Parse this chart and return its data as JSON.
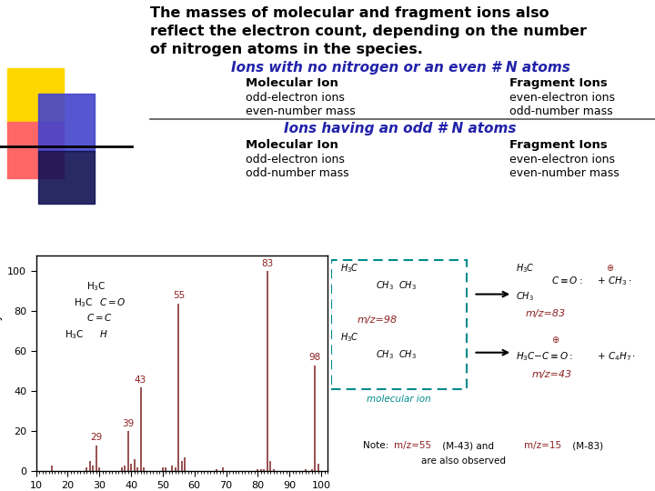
{
  "title_line1": "The masses of molecular and fragment ions also",
  "title_line2": "reflect the electron count, depending on the number",
  "title_line3": "of nitrogen atoms in the species.",
  "subtitle1": "Ions with no nitrogen or an even # N atoms",
  "subtitle2": "Ions having an odd # N atoms",
  "section1_mol_header": "Molecular Ion",
  "section1_mol_lines": [
    "odd-electron ions",
    "even-number mass"
  ],
  "section1_frag_header": "Fragment Ions",
  "section1_frag_lines": [
    "even-electron ions",
    "odd-number mass"
  ],
  "section2_mol_header": "Molecular Ion",
  "section2_mol_lines": [
    "odd-electron ions",
    "odd-number mass"
  ],
  "section2_frag_header": "Fragment Ions",
  "section2_frag_lines": [
    "even-electron ions",
    "even-number mass"
  ],
  "ms_peaks": [
    {
      "mz": 15,
      "intensity": 3
    },
    {
      "mz": 26,
      "intensity": 2
    },
    {
      "mz": 27,
      "intensity": 5
    },
    {
      "mz": 28,
      "intensity": 3
    },
    {
      "mz": 29,
      "intensity": 13
    },
    {
      "mz": 30,
      "intensity": 2
    },
    {
      "mz": 37,
      "intensity": 2
    },
    {
      "mz": 38,
      "intensity": 3
    },
    {
      "mz": 39,
      "intensity": 20
    },
    {
      "mz": 40,
      "intensity": 4
    },
    {
      "mz": 41,
      "intensity": 6
    },
    {
      "mz": 42,
      "intensity": 2
    },
    {
      "mz": 43,
      "intensity": 42
    },
    {
      "mz": 44,
      "intensity": 2
    },
    {
      "mz": 50,
      "intensity": 2
    },
    {
      "mz": 51,
      "intensity": 2
    },
    {
      "mz": 53,
      "intensity": 3
    },
    {
      "mz": 54,
      "intensity": 2
    },
    {
      "mz": 55,
      "intensity": 84
    },
    {
      "mz": 56,
      "intensity": 5
    },
    {
      "mz": 57,
      "intensity": 7
    },
    {
      "mz": 67,
      "intensity": 1
    },
    {
      "mz": 69,
      "intensity": 2
    },
    {
      "mz": 80,
      "intensity": 1
    },
    {
      "mz": 81,
      "intensity": 1
    },
    {
      "mz": 82,
      "intensity": 1
    },
    {
      "mz": 83,
      "intensity": 100
    },
    {
      "mz": 84,
      "intensity": 5
    },
    {
      "mz": 85,
      "intensity": 1
    },
    {
      "mz": 95,
      "intensity": 1
    },
    {
      "mz": 97,
      "intensity": 1
    },
    {
      "mz": 98,
      "intensity": 53
    },
    {
      "mz": 99,
      "intensity": 4
    }
  ],
  "labeled_peaks": [
    29,
    39,
    43,
    55,
    83,
    98
  ],
  "bar_color": "#7B2020",
  "background_color": "#FFFFFF",
  "subtitle_color": "#2222AA",
  "text_color": "#000000",
  "label_color": "#8B2020",
  "mol_ion_color": "#008B8B",
  "note_mz_color": "#8B2020",
  "sq1_color": "#FFD700",
  "sq2_color": "#FF6666",
  "sq3_color": "#4444CC",
  "sq4_color": "#111155"
}
